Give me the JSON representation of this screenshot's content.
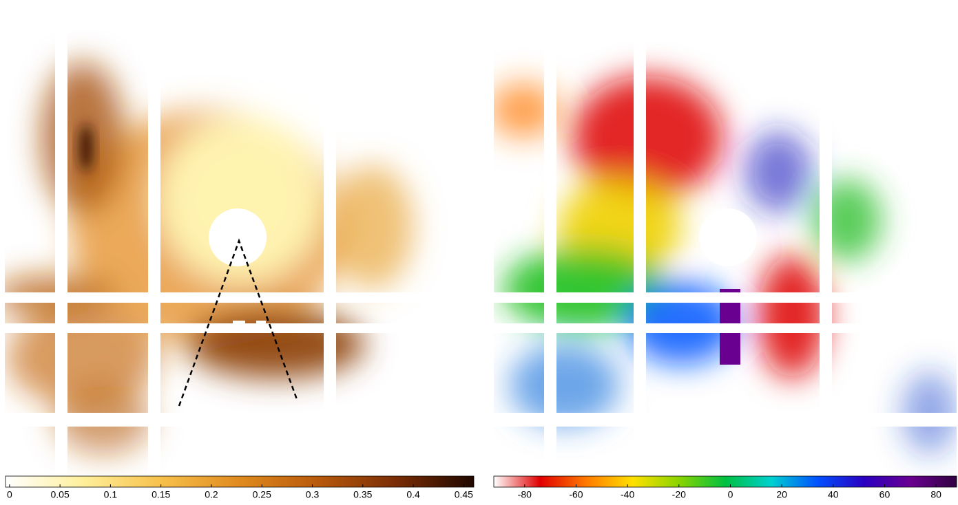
{
  "chart_data": [
    {
      "type": "colorbar-map",
      "clim": [
        -0.004,
        0.46
      ],
      "ticks": [
        0,
        0.05,
        0.1,
        0.15,
        0.2,
        0.25,
        0.3,
        0.35,
        0.4,
        0.45
      ],
      "colors": [
        "#ffffff",
        "#ffef9a",
        "#f7c04a",
        "#e08a1e",
        "#b85a0c",
        "#7a2d05",
        "#200800"
      ]
    },
    {
      "type": "colorbar-map",
      "clim": [
        -92,
        88
      ],
      "ticks": [
        -80,
        -60,
        -40,
        -20,
        0,
        20,
        40,
        60,
        80
      ],
      "colors": [
        "#ffffff",
        "#e00000",
        "#ff7a00",
        "#ffe000",
        "#8ad400",
        "#00c040",
        "#00d0d0",
        "#0050ff",
        "#2a00c0",
        "#6a0090",
        "#300040"
      ]
    }
  ]
}
